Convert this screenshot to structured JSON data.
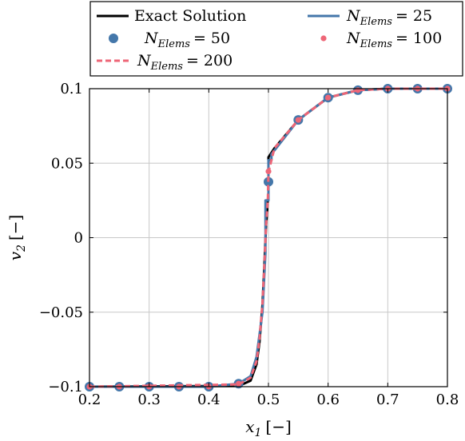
{
  "chart_data": {
    "type": "line",
    "xlabel_var": "x",
    "xlabel_sub": "1",
    "xlabel_unit": "[−]",
    "ylabel_var": "v",
    "ylabel_sub": "2",
    "ylabel_unit": "[−]",
    "xlim": [
      0.2,
      0.8
    ],
    "ylim": [
      -0.1,
      0.1
    ],
    "xticks": [
      0.2,
      0.3,
      0.4,
      0.5,
      0.6,
      0.7,
      0.8
    ],
    "xtick_labels": [
      "0.2",
      "0.3",
      "0.4",
      "0.5",
      "0.6",
      "0.7",
      "0.8"
    ],
    "yticks": [
      -0.1,
      -0.05,
      0,
      0.05,
      0.1
    ],
    "ytick_labels": [
      "−0.1",
      "−0.05",
      "0",
      "0.05",
      "0.1"
    ],
    "grid": true,
    "legend_position": "above",
    "series": [
      {
        "name": "Exact Solution",
        "style": "line",
        "color": "#000000",
        "x": [
          0.2,
          0.45,
          0.47,
          0.48,
          0.485,
          0.49,
          0.493,
          0.496,
          0.499,
          0.5,
          0.5,
          0.51,
          0.55,
          0.6,
          0.65,
          0.7,
          0.75,
          0.8
        ],
        "y": [
          -0.1,
          -0.0995,
          -0.096,
          -0.085,
          -0.07,
          -0.045,
          -0.02,
          0.008,
          0.025,
          0.03,
          0.054,
          0.06,
          0.079,
          0.094,
          0.099,
          0.1,
          0.1,
          0.1
        ]
      },
      {
        "name": "N_Elems = 25",
        "style": "line",
        "color": "#4477aa",
        "x": [
          0.2,
          0.3,
          0.4,
          0.45,
          0.47,
          0.48,
          0.49,
          0.495,
          0.495,
          0.5,
          0.5,
          0.505,
          0.505,
          0.55,
          0.6,
          0.65,
          0.7,
          0.8
        ],
        "y": [
          -0.1,
          -0.1,
          -0.1,
          -0.098,
          -0.093,
          -0.08,
          -0.05,
          -0.01,
          0.025,
          0.025,
          0.052,
          0.052,
          0.056,
          0.079,
          0.094,
          0.099,
          0.1,
          0.1
        ]
      },
      {
        "name": "N_Elems = 50",
        "style": "markers",
        "color": "#4477aa",
        "x": [
          0.2,
          0.25,
          0.3,
          0.35,
          0.4,
          0.45,
          0.5,
          0.55,
          0.6,
          0.65,
          0.7,
          0.75,
          0.8
        ],
        "y": [
          -0.1,
          -0.1,
          -0.1,
          -0.1,
          -0.1,
          -0.098,
          0.0375,
          0.079,
          0.094,
          0.099,
          0.1,
          0.1,
          0.1
        ]
      },
      {
        "name": "N_Elems = 100",
        "style": "markers-small",
        "color": "#ee6677",
        "x": [
          0.2,
          0.25,
          0.3,
          0.35,
          0.4,
          0.45,
          0.5,
          0.55,
          0.6,
          0.65,
          0.7,
          0.75,
          0.8
        ],
        "y": [
          -0.1,
          -0.1,
          -0.1,
          -0.1,
          -0.1,
          -0.098,
          0.0445,
          0.079,
          0.094,
          0.099,
          0.1,
          0.1,
          0.1
        ]
      },
      {
        "name": "N_Elems = 200",
        "style": "dashed",
        "color": "#ee6677",
        "x": [
          0.2,
          0.45,
          0.47,
          0.48,
          0.485,
          0.49,
          0.493,
          0.496,
          0.499,
          0.5,
          0.51,
          0.55,
          0.6,
          0.65,
          0.7,
          0.75,
          0.8
        ],
        "y": [
          -0.1,
          -0.0985,
          -0.094,
          -0.083,
          -0.068,
          -0.044,
          -0.02,
          0.008,
          0.026,
          0.044,
          0.06,
          0.079,
          0.094,
          0.099,
          0.1,
          0.1,
          0.1
        ]
      }
    ]
  },
  "legend": {
    "exact_label": "Exact Solution",
    "n_symbol": "N",
    "n_sub": "Elems",
    "n25": "= 25",
    "n50": "= 50",
    "n100": "= 100",
    "n200": "= 200"
  }
}
